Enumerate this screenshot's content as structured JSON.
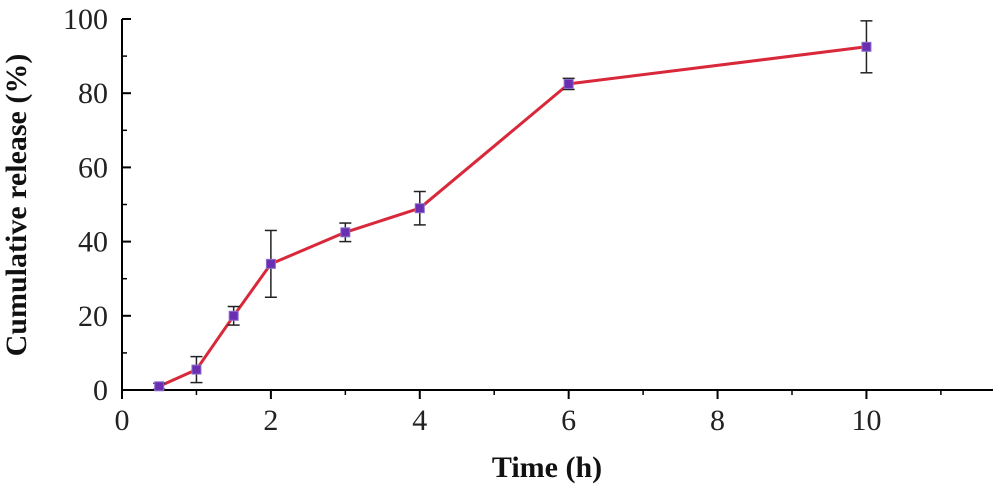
{
  "chart_data": {
    "type": "line",
    "title": "",
    "xlabel": "Time (h)",
    "ylabel": "Cumulative release (%)",
    "xlim": [
      0,
      11.7
    ],
    "ylim": [
      0,
      100
    ],
    "x_ticks": [
      0,
      2,
      4,
      6,
      8,
      10
    ],
    "y_ticks": [
      0,
      20,
      40,
      60,
      80,
      100
    ],
    "grid": false,
    "legend": "none",
    "series": [
      {
        "x": [
          0.5,
          1,
          1.5,
          2,
          3,
          4,
          6,
          10
        ],
        "y": [
          1,
          5.5,
          20,
          34,
          42.5,
          49,
          82.5,
          92.5
        ],
        "error": [
          0.8,
          3.5,
          2.5,
          9,
          2.5,
          4.5,
          1.5,
          7
        ],
        "line_color": "#d8283a",
        "marker_color": "#6a2fb0"
      }
    ]
  }
}
